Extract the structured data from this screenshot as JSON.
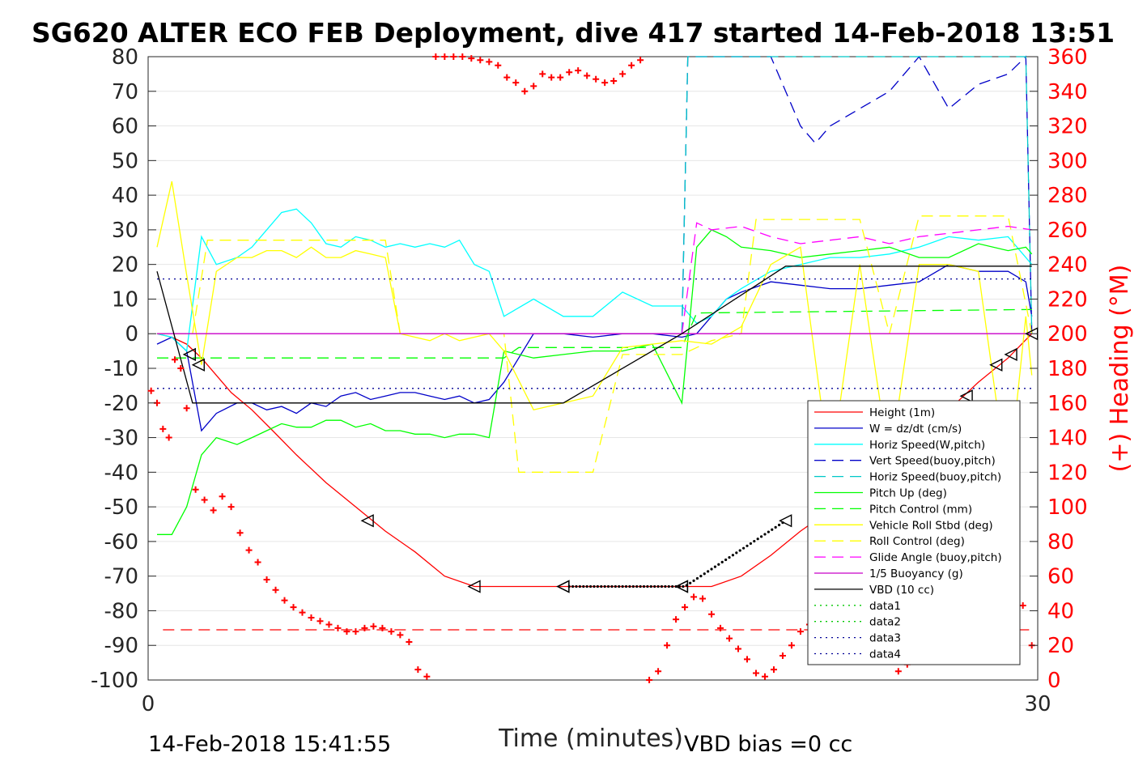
{
  "chart_data": {
    "type": "line",
    "title": "SG620 ALTER ECO FEB Deployment, dive 417 started 14-Feb-2018 13:51",
    "xlabel": "Time (minutes)",
    "ylabel": "",
    "y2label": "(+) Heading (°M)",
    "xlim": [
      0,
      30
    ],
    "ylim": [
      -100,
      80
    ],
    "y2lim": [
      0,
      360
    ],
    "xticks": [
      "0",
      "30"
    ],
    "yticks": [
      "80",
      "70",
      "60",
      "50",
      "40",
      "30",
      "20",
      "10",
      "0",
      "-10",
      "-20",
      "-30",
      "-40",
      "-50",
      "-60",
      "-70",
      "-80",
      "-90",
      "-100"
    ],
    "y2ticks": [
      "360",
      "340",
      "320",
      "300",
      "280",
      "260",
      "240",
      "220",
      "200",
      "180",
      "160",
      "140",
      "120",
      "100",
      "80",
      "60",
      "40",
      "20",
      "0"
    ],
    "grid": true,
    "legend_position": "lower-right",
    "footer_left": "14-Feb-2018 15:41:55",
    "footer_right": "VBD bias =0 cc",
    "series": [
      {
        "name": "Height (1m)",
        "color": "#ff0000",
        "style": "solid",
        "x": [
          0.3,
          0.8,
          1.3,
          1.8,
          2.2,
          2.8,
          3.5,
          4.2,
          5,
          6,
          7,
          8,
          9,
          10,
          11,
          12,
          13,
          14,
          15,
          16,
          17,
          18,
          19,
          20,
          21,
          22,
          23,
          24,
          25,
          26,
          27,
          28,
          29,
          29.8
        ],
        "y": [
          0,
          -1,
          -3,
          -7,
          -11,
          -17,
          -22,
          -28,
          -35,
          -43,
          -50,
          -57,
          -63,
          -70,
          -73,
          -73,
          -73,
          -73,
          -73,
          -73,
          -73,
          -73,
          -73,
          -70,
          -64,
          -57,
          -51,
          -44,
          -37,
          -30,
          -22,
          -14,
          -7,
          0
        ]
      },
      {
        "name": "W = dz/dt (cm/s)",
        "color": "#0000c8",
        "style": "solid",
        "x": [
          0.3,
          0.8,
          1.3,
          1.8,
          2.3,
          3,
          3.5,
          4,
          4.5,
          5,
          5.5,
          6,
          6.5,
          7,
          7.5,
          8,
          8.5,
          9,
          9.5,
          10,
          10.5,
          11,
          11.5,
          12,
          13,
          14,
          15,
          16,
          17,
          18,
          18.5,
          19,
          19.5,
          20,
          21,
          22,
          23,
          24,
          25,
          26,
          27,
          28,
          29,
          29.6,
          29.8
        ],
        "y": [
          -3,
          -1,
          -5,
          -28,
          -23,
          -20,
          -20,
          -22,
          -21,
          -23,
          -20,
          -21,
          -18,
          -17,
          -19,
          -18,
          -17,
          -17,
          -18,
          -19,
          -18,
          -20,
          -19,
          -14,
          0,
          0,
          -1,
          0,
          0,
          -1,
          0,
          5,
          10,
          12,
          15,
          14,
          13,
          13,
          14,
          15,
          20,
          18,
          18,
          15,
          5
        ]
      },
      {
        "name": "Horiz Speed(W,pitch)",
        "color": "#00ffff",
        "style": "solid",
        "x": [
          0.3,
          0.8,
          1.3,
          1.8,
          2.3,
          3,
          3.5,
          4,
          4.5,
          5,
          5.5,
          6,
          6.5,
          7,
          7.5,
          8,
          8.5,
          9,
          9.5,
          10,
          10.5,
          11,
          11.5,
          12,
          13,
          14,
          15,
          16,
          17,
          18,
          18.5,
          19,
          19.5,
          20,
          21,
          22,
          23,
          24,
          25,
          26,
          27,
          28,
          29,
          29.6,
          29.8
        ],
        "y": [
          0,
          -1,
          -5,
          28,
          20,
          22,
          25,
          30,
          35,
          36,
          32,
          26,
          25,
          28,
          27,
          25,
          26,
          25,
          26,
          25,
          27,
          20,
          18,
          5,
          10,
          5,
          5,
          12,
          8,
          8,
          3,
          5,
          10,
          13,
          18,
          20,
          22,
          22,
          23,
          25,
          28,
          27,
          28,
          22,
          20
        ]
      },
      {
        "name": "Vert Speed(buoy,pitch)",
        "color": "#0000c8",
        "style": "dashed",
        "x": [
          18,
          18.2,
          18.5,
          19,
          20,
          21,
          22,
          22.5,
          23,
          24,
          25,
          26,
          27,
          28,
          29,
          29.6,
          29.8
        ],
        "y": [
          0,
          80,
          80,
          80,
          80,
          80,
          60,
          55,
          60,
          65,
          70,
          80,
          65,
          72,
          75,
          80,
          0
        ]
      },
      {
        "name": "Horiz Speed(buoy,pitch)",
        "color": "#00c8c8",
        "style": "dashed",
        "x": [
          18,
          18.2,
          18.5,
          29.6,
          29.8
        ],
        "y": [
          0,
          80,
          80,
          80,
          0
        ]
      },
      {
        "name": "Pitch Up (deg)",
        "color": "#00ff00",
        "style": "solid",
        "x": [
          0.3,
          0.8,
          1.3,
          1.8,
          2.3,
          3,
          3.5,
          4,
          4.5,
          5,
          5.5,
          6,
          6.5,
          7,
          7.5,
          8,
          8.5,
          9,
          9.5,
          10,
          10.5,
          11,
          11.5,
          12,
          13,
          14,
          15,
          16,
          17,
          18,
          18.5,
          19,
          19.5,
          20,
          21,
          22,
          23,
          24,
          25,
          26,
          27,
          28,
          29,
          29.6,
          29.8
        ],
        "y": [
          -58,
          -58,
          -50,
          -35,
          -30,
          -32,
          -30,
          -28,
          -26,
          -27,
          -27,
          -25,
          -25,
          -27,
          -26,
          -28,
          -28,
          -29,
          -29,
          -30,
          -29,
          -29,
          -30,
          -5,
          -7,
          -6,
          -5,
          -5,
          -3,
          -20,
          25,
          30,
          28,
          25,
          24,
          22,
          23,
          24,
          25,
          22,
          22,
          26,
          24,
          25,
          23
        ]
      },
      {
        "name": "Pitch Control (mm)",
        "color": "#00ff00",
        "style": "dashed",
        "x": [
          0.3,
          1.5,
          2,
          8,
          10,
          12,
          12.5,
          18,
          18.5,
          29.8
        ],
        "y": [
          -7,
          -7,
          -7,
          -7,
          -7,
          -7,
          -4,
          -4,
          6,
          7
        ]
      },
      {
        "name": "Vehicle Roll Stbd (deg)",
        "color": "#ffff00",
        "style": "solid",
        "x": [
          0.3,
          0.8,
          1.3,
          1.8,
          2.3,
          3,
          3.5,
          4,
          4.5,
          5,
          5.5,
          6,
          6.5,
          7,
          7.5,
          8,
          8.5,
          9,
          9.5,
          10,
          10.5,
          11,
          11.5,
          12,
          13,
          14,
          15,
          16,
          17,
          18,
          19,
          20,
          21,
          22,
          23,
          24,
          25,
          26,
          27,
          28,
          29,
          29.6,
          29.8
        ],
        "y": [
          25,
          44,
          17,
          -9,
          18,
          22,
          22,
          24,
          24,
          22,
          25,
          22,
          22,
          24,
          23,
          22,
          0,
          -1,
          -2,
          0,
          -2,
          -1,
          0,
          -5,
          -22,
          -20,
          -18,
          -4,
          -3,
          -2,
          -3,
          2,
          20,
          25,
          -40,
          20,
          -38,
          20,
          20,
          18,
          -44,
          5,
          -12
        ]
      },
      {
        "name": "Roll Control (deg)",
        "color": "#ffff00",
        "style": "dashed",
        "x": [
          0.3,
          1.5,
          2,
          8,
          8.5,
          12,
          12.5,
          13,
          14,
          15,
          16,
          17,
          18,
          19,
          20,
          20.5,
          21,
          22,
          23,
          24,
          25,
          26,
          27,
          28,
          29,
          29.8
        ],
        "y": [
          0,
          0,
          27,
          27,
          0,
          0,
          -40,
          -40,
          -40,
          -40,
          -6,
          -6,
          -6,
          -2,
          0,
          33,
          33,
          33,
          33,
          33,
          0,
          34,
          34,
          34,
          34,
          0
        ]
      },
      {
        "name": "Glide Angle (buoy,pitch)",
        "color": "#ff00ff",
        "style": "dashed",
        "x": [
          18,
          18.5,
          19,
          20,
          21,
          22,
          23,
          24,
          25,
          26,
          27,
          28,
          29,
          29.8
        ],
        "y": [
          0,
          32,
          30,
          31,
          28,
          26,
          27,
          28,
          26,
          28,
          29,
          30,
          31,
          30
        ]
      },
      {
        "name": "1/5 Buoyancy (g)",
        "color": "#c800c8",
        "style": "solid",
        "x": [
          0.3,
          29.8
        ],
        "y": [
          0,
          0
        ]
      },
      {
        "name": "VBD (10 cc)",
        "color": "#000000",
        "style": "solid",
        "x": [
          0.3,
          1.5,
          14,
          18,
          21.5,
          29.8
        ],
        "y": [
          18,
          -20,
          -20,
          0,
          19.5,
          19.5
        ]
      },
      {
        "name": "data1",
        "color": "#00c800",
        "style": "dotted",
        "x": [],
        "y": []
      },
      {
        "name": "data2",
        "color": "#00c800",
        "style": "dotted",
        "x": [],
        "y": []
      },
      {
        "name": "data3",
        "color": "#000096",
        "style": "dotted",
        "x": [
          0.3,
          29.8
        ],
        "y": [
          15.8,
          15.8
        ]
      },
      {
        "name": "data4",
        "color": "#000096",
        "style": "dotted",
        "x": [
          0.3,
          29.8
        ],
        "y": [
          -15.8,
          -15.8
        ]
      }
    ],
    "heading_reference": {
      "color": "#ff0000",
      "style": "dashed",
      "y2": 29
    },
    "heading_points": {
      "color": "#ff0000",
      "marker": "+",
      "x": [
        0.1,
        0.3,
        0.5,
        0.7,
        0.9,
        1.1,
        1.3,
        1.6,
        1.9,
        2.2,
        2.5,
        2.8,
        3.1,
        3.4,
        3.7,
        4,
        4.3,
        4.6,
        4.9,
        5.2,
        5.5,
        5.8,
        6.1,
        6.4,
        6.7,
        7,
        7.3,
        7.6,
        7.9,
        8.2,
        8.5,
        8.8,
        9.1,
        9.4,
        9.7,
        10,
        10.3,
        10.6,
        10.9,
        11.2,
        11.5,
        11.8,
        12.1,
        12.4,
        12.7,
        13,
        13.3,
        13.6,
        13.9,
        14.2,
        14.5,
        14.8,
        15.1,
        15.4,
        15.7,
        16,
        16.3,
        16.6,
        16.9,
        17.2,
        17.5,
        17.8,
        18.1,
        18.4,
        18.7,
        19,
        19.3,
        19.6,
        19.9,
        20.2,
        20.5,
        20.8,
        21.1,
        21.4,
        21.7,
        22,
        22.3,
        22.6,
        22.9,
        23.2,
        23.5,
        23.8,
        24.1,
        24.4,
        24.7,
        25,
        25.3,
        25.6,
        25.9,
        26.2,
        26.5,
        26.8,
        27.1,
        27.4,
        27.7,
        28,
        28.3,
        28.6,
        28.9,
        29.2,
        29.5,
        29.8
      ],
      "y2": [
        167,
        160,
        145,
        140,
        185,
        180,
        157,
        110,
        104,
        98,
        106,
        100,
        85,
        75,
        68,
        58,
        52,
        46,
        42,
        39,
        36,
        34,
        32,
        30,
        28,
        28,
        30,
        31,
        30,
        28,
        26,
        22,
        6,
        2,
        360,
        360,
        360,
        360,
        359,
        358,
        357,
        355,
        348,
        345,
        340,
        343,
        350,
        348,
        348,
        351,
        352,
        349,
        347,
        345,
        346,
        350,
        355,
        358,
        0,
        5,
        20,
        35,
        42,
        48,
        47,
        38,
        30,
        24,
        18,
        12,
        4,
        2,
        6,
        14,
        20,
        28,
        32,
        42,
        56,
        60,
        52,
        40,
        32,
        28,
        22,
        12,
        5,
        9,
        13,
        17,
        21,
        25,
        27,
        29,
        31,
        33,
        35,
        37,
        39,
        41,
        43,
        20
      ]
    },
    "triangle_markers": {
      "color": "#000000",
      "x": [
        1.4,
        1.7,
        7.4,
        11,
        14,
        14,
        18,
        18,
        21.5,
        23.1,
        24,
        25.2,
        27.6,
        28.6,
        29.1,
        29.8
      ],
      "y": [
        -6,
        -9,
        -54,
        -73,
        -73,
        -73,
        -73,
        -73,
        -54,
        -44,
        -39,
        -35,
        -18,
        -9,
        -6,
        0
      ]
    }
  }
}
